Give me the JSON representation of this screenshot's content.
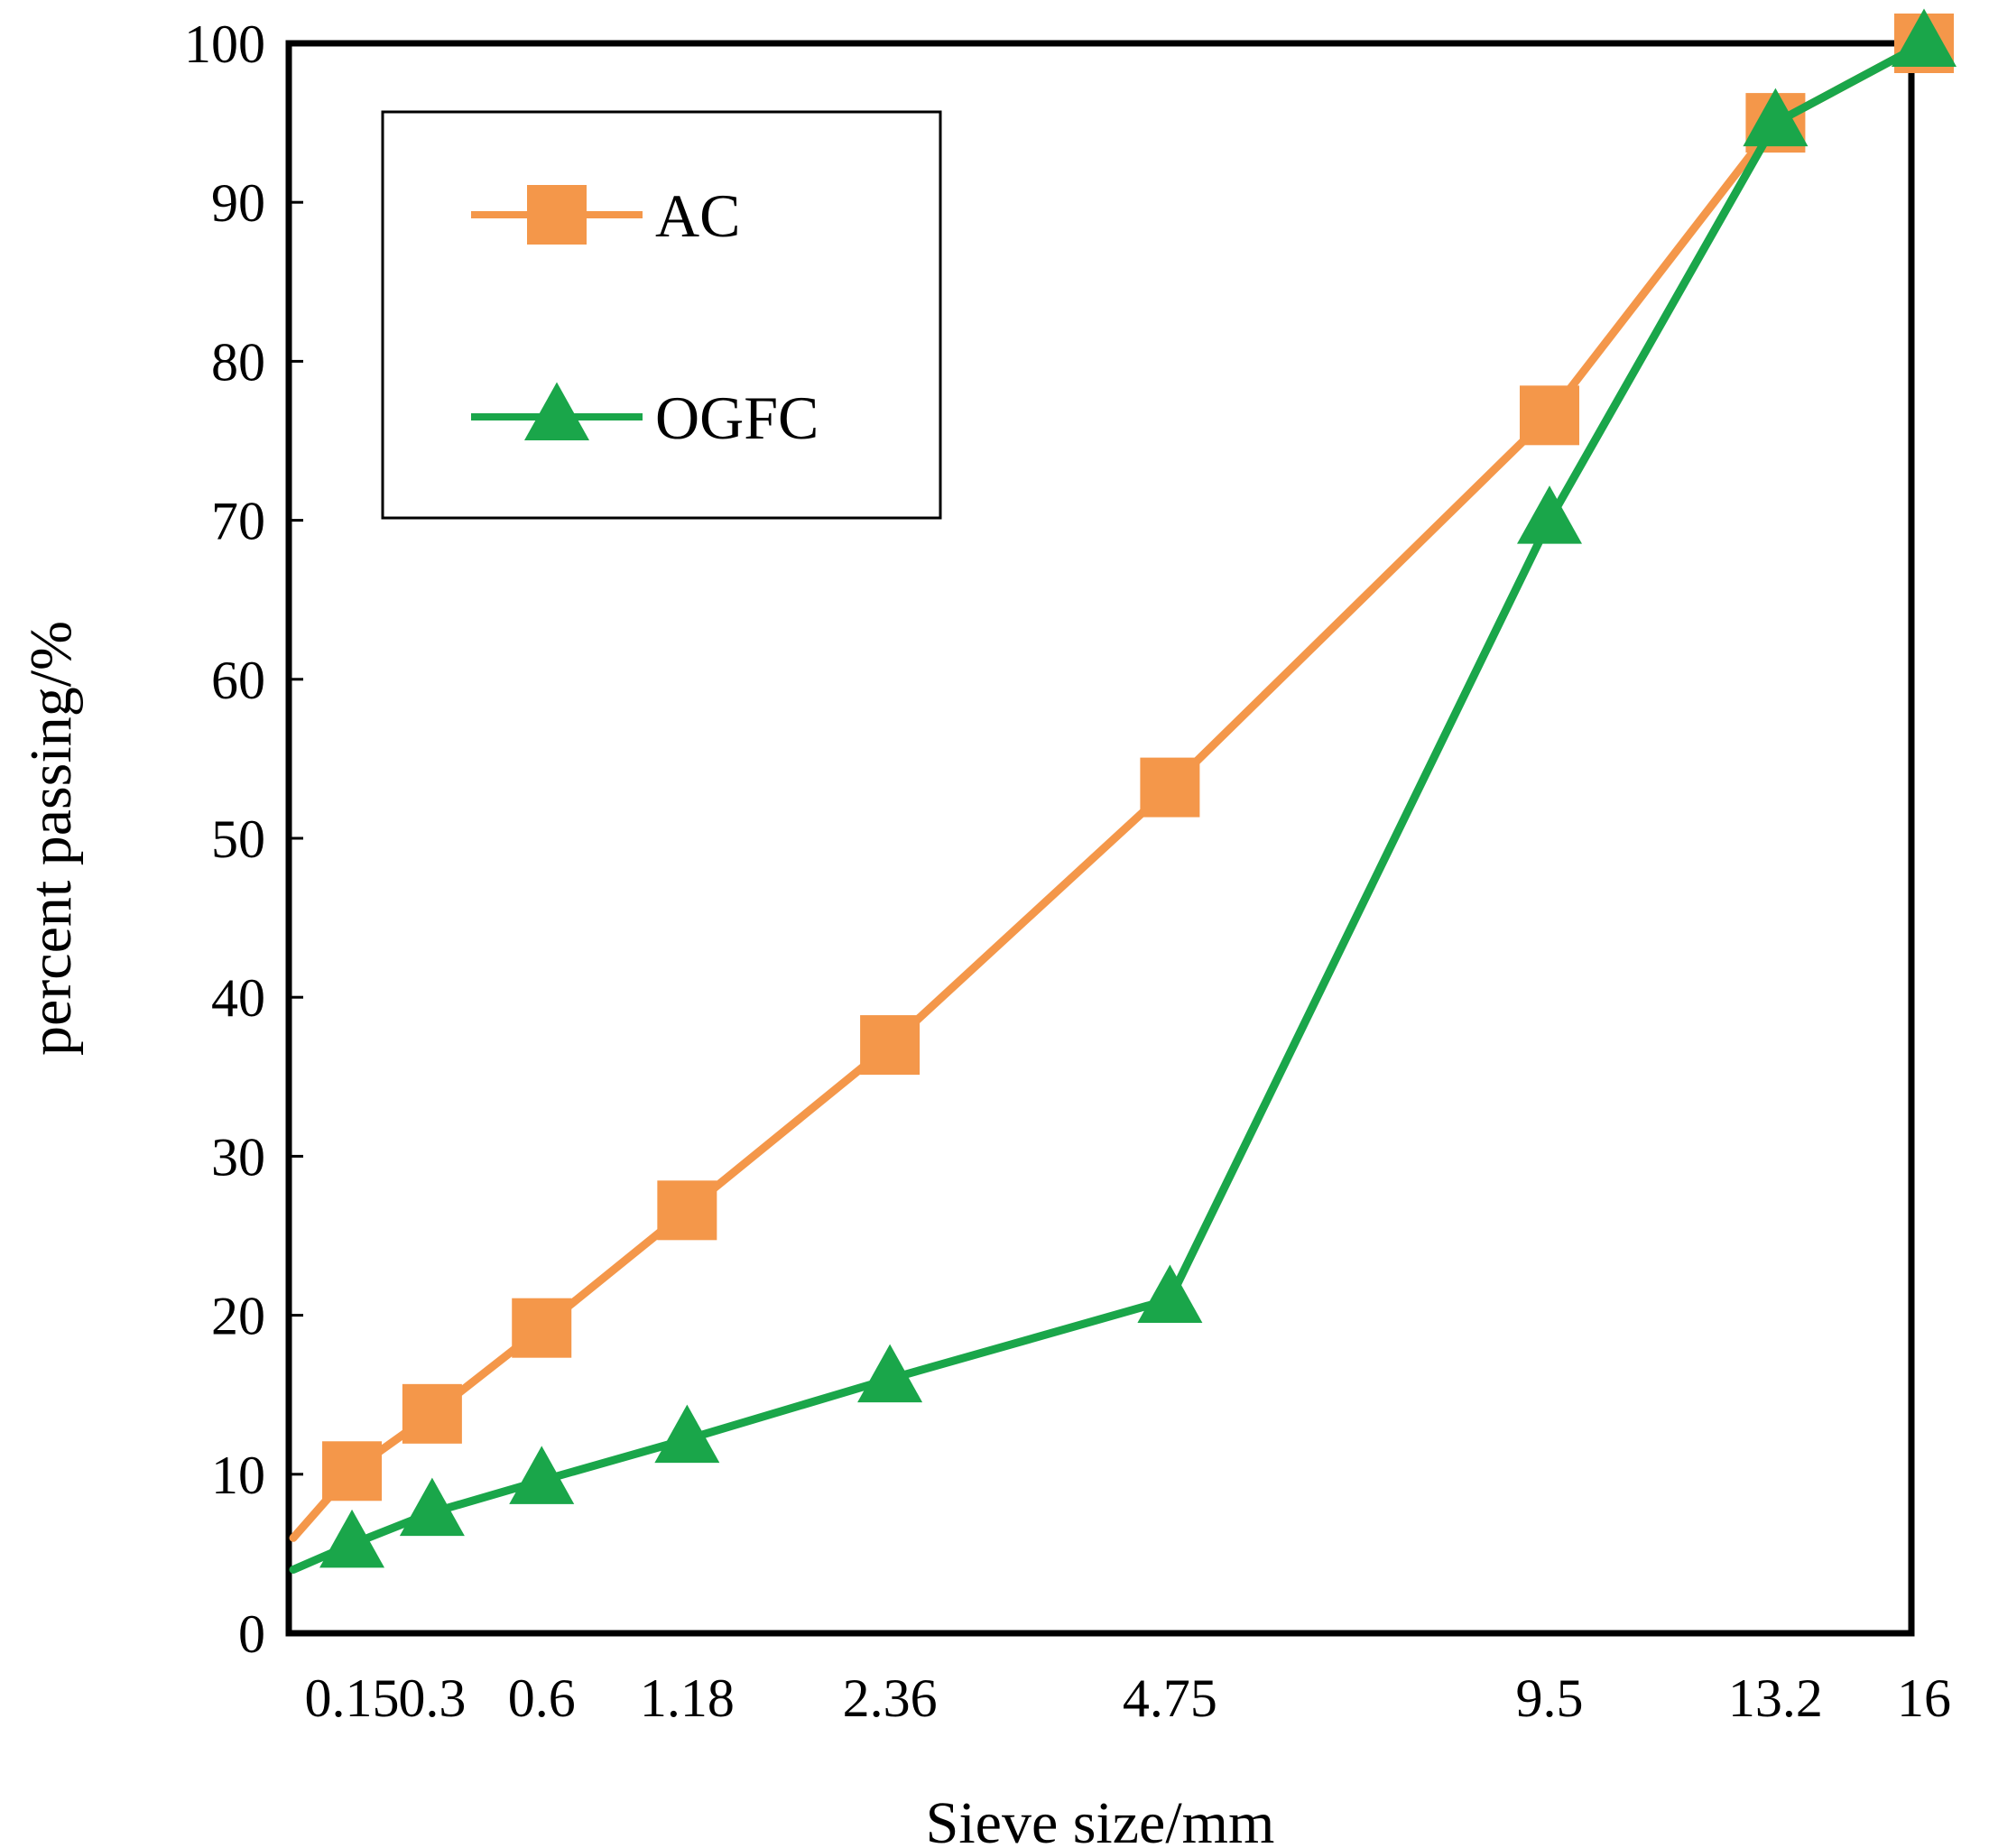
{
  "chart_data": {
    "type": "line",
    "title": "",
    "xlabel": "Sieve size/mm",
    "ylabel": "percent passing/%",
    "x_scale": "categorical-power",
    "ylim": [
      0,
      100
    ],
    "yticks": [
      0,
      10,
      20,
      30,
      40,
      50,
      60,
      70,
      80,
      90,
      100
    ],
    "xticks": [
      "0.15",
      "0.3",
      "0.6",
      "1.18",
      "2.36",
      "4.75",
      "9.5",
      "13.2",
      "16"
    ],
    "legend_position": "top-left",
    "grid": false,
    "series": [
      {
        "name": "AC",
        "color": "#F4974A",
        "marker": "square",
        "x": [
          0.075,
          0.15,
          0.3,
          0.6,
          1.18,
          2.36,
          4.75,
          9.5,
          13.2,
          16
        ],
        "values": [
          6,
          10.2,
          13.8,
          19.2,
          26.6,
          37.0,
          53.2,
          76.6,
          95.0,
          100
        ]
      },
      {
        "name": "OGFC",
        "color": "#1AA64A",
        "marker": "triangle",
        "x": [
          0.075,
          0.15,
          0.3,
          0.6,
          1.18,
          2.36,
          4.75,
          9.5,
          13.2,
          16
        ],
        "values": [
          4,
          5.6,
          7.6,
          9.6,
          12.2,
          16.0,
          21.0,
          70.0,
          95.0,
          100
        ]
      }
    ]
  }
}
